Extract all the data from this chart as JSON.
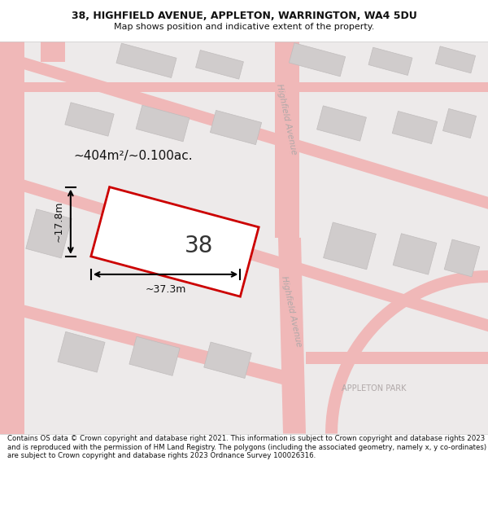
{
  "title": "38, HIGHFIELD AVENUE, APPLETON, WARRINGTON, WA4 5DU",
  "subtitle": "Map shows position and indicative extent of the property.",
  "footer": "Contains OS data © Crown copyright and database right 2021. This information is subject to Crown copyright and database rights 2023 and is reproduced with the permission of HM Land Registry. The polygons (including the associated geometry, namely x, y co-ordinates) are subject to Crown copyright and database rights 2023 Ordnance Survey 100026316.",
  "property_label": "38",
  "area_label": "~404m²/~0.100ac.",
  "width_label": "~37.3m",
  "height_label": "~17.8m",
  "road_label_upper": "Highfield Avenue",
  "road_label_lower": "Highfield Avenue",
  "park_label": "APPLETON PARK",
  "property_color": "#cc0000",
  "road_color": "#f0b8b8",
  "bg_color": "#e8e6e6",
  "building_color": "#d0cccc",
  "building_edge": "#c0bcbc"
}
